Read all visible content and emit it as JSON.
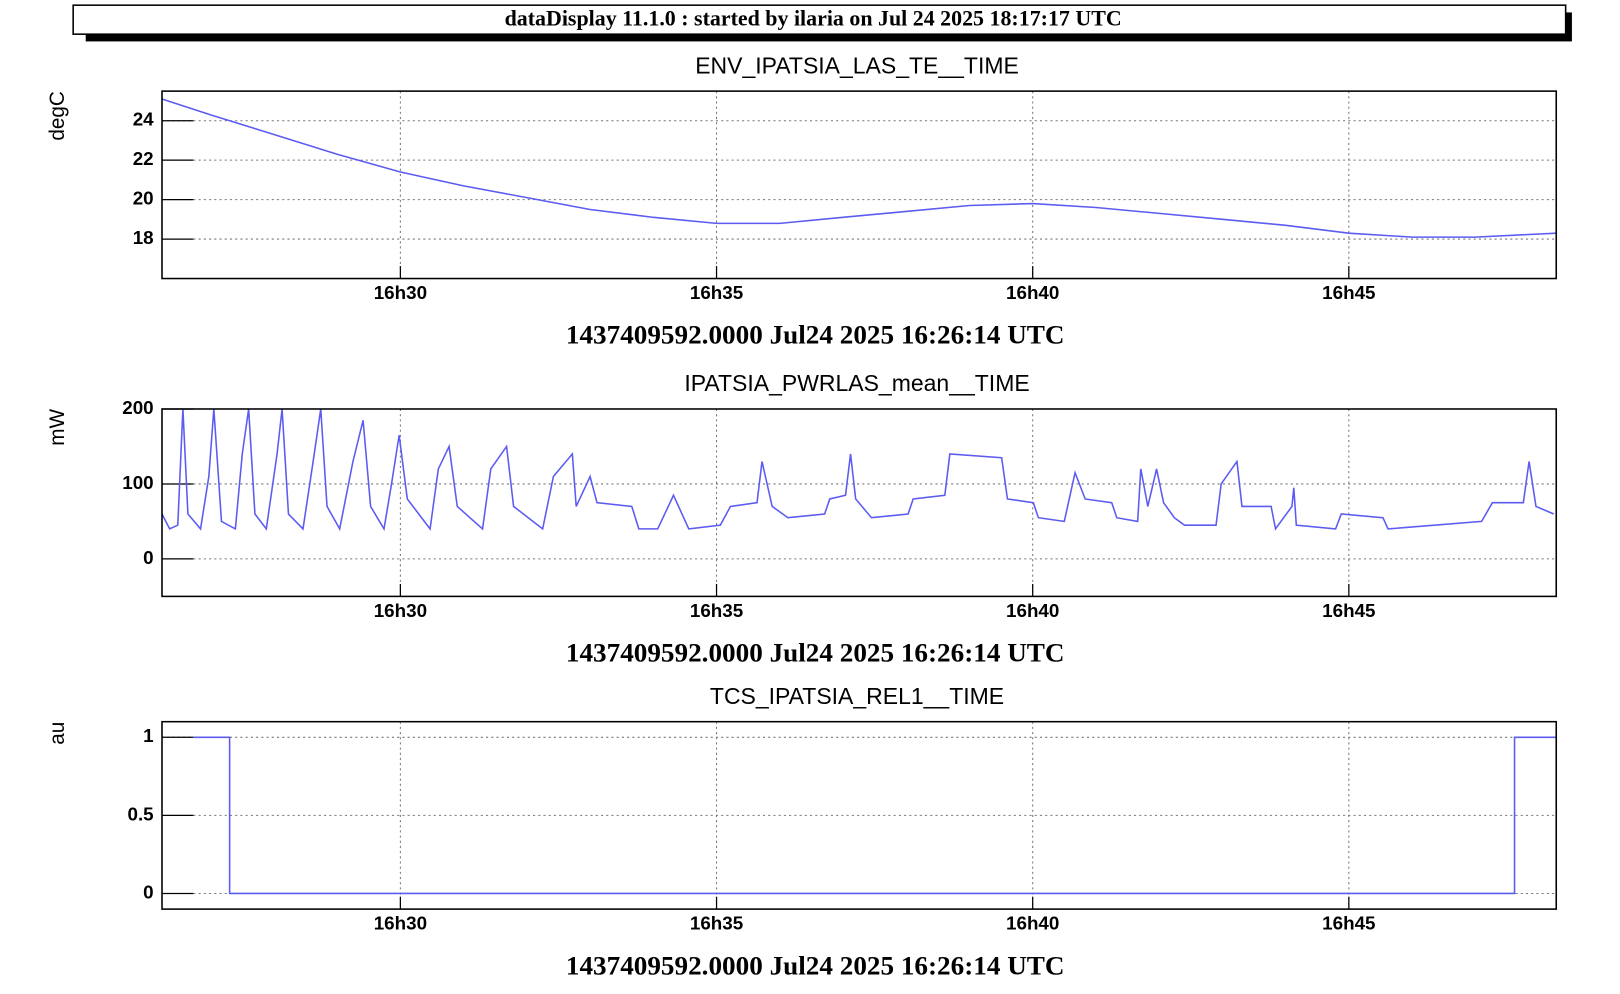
{
  "page_title": "dataDisplay 11.1.0 : started by ilaria on Jul 24 2025 18:17:17 UTC",
  "chart_data": [
    {
      "type": "line",
      "title": "ENV_IPATSIA_LAS_TE__TIME",
      "ylabel": "degC",
      "xlabel": "1437409592.0000 Jul24 2025 16:26:14 UTC",
      "color": "#5c5cf2",
      "grid": true,
      "x": [
        26.23,
        27,
        28,
        29,
        30,
        31,
        32,
        33,
        34,
        35,
        36,
        37,
        38,
        39,
        40,
        41,
        42,
        43,
        44,
        45,
        46,
        47,
        48.28
      ],
      "values": [
        25.1,
        24.3,
        23.3,
        22.3,
        21.4,
        20.7,
        20.1,
        19.5,
        19.1,
        18.8,
        18.8,
        19.1,
        19.4,
        19.7,
        19.8,
        19.6,
        19.3,
        19.0,
        18.7,
        18.3,
        18.1,
        18.1,
        18.3
      ],
      "xlim": [
        26.23,
        48.28
      ],
      "xticks": [
        {
          "value": 30,
          "label": "16h30"
        },
        {
          "value": 35,
          "label": "16h35"
        },
        {
          "value": 40,
          "label": "16h40"
        },
        {
          "value": 45,
          "label": "16h45"
        }
      ],
      "ylim": [
        16,
        25.5
      ],
      "yticks": [
        18,
        20,
        22,
        24
      ]
    },
    {
      "type": "line",
      "title": "IPATSIA_PWRLAS_mean__TIME",
      "ylabel": "mW",
      "xlabel": "1437409592.0000 Jul24 2025 16:26:14 UTC",
      "color": "#5c5cf2",
      "grid": true,
      "x": [
        26.23,
        26.35,
        26.48,
        26.56,
        26.64,
        26.84,
        26.97,
        27.05,
        27.17,
        27.39,
        27.5,
        27.6,
        27.7,
        27.88,
        28.05,
        28.13,
        28.23,
        28.46,
        28.62,
        28.74,
        28.84,
        29.04,
        29.25,
        29.41,
        29.53,
        29.74,
        29.86,
        29.98,
        30.11,
        30.47,
        30.6,
        30.77,
        30.9,
        31.3,
        31.43,
        31.68,
        31.79,
        32.25,
        32.42,
        32.72,
        32.78,
        33.0,
        33.11,
        33.66,
        33.77,
        34.07,
        34.32,
        34.56,
        35.06,
        35.22,
        35.64,
        35.72,
        35.88,
        36.13,
        36.71,
        36.79,
        37.04,
        37.12,
        37.2,
        37.45,
        38.03,
        38.11,
        38.61,
        38.69,
        39.51,
        39.6,
        40.01,
        40.09,
        40.5,
        40.67,
        40.83,
        41.25,
        41.33,
        41.66,
        41.71,
        41.82,
        41.96,
        42.07,
        42.24,
        42.4,
        42.9,
        42.98,
        43.23,
        43.31,
        43.77,
        43.84,
        44.1,
        44.13,
        44.17,
        44.79,
        44.88,
        45.54,
        45.62,
        47.1,
        47.27,
        47.76,
        47.85,
        47.96,
        48.24
      ],
      "values": [
        60,
        40,
        45,
        200,
        60,
        40,
        110,
        200,
        50,
        40,
        140,
        200,
        60,
        40,
        140,
        200,
        60,
        40,
        130,
        200,
        70,
        40,
        130,
        185,
        70,
        40,
        100,
        165,
        80,
        40,
        120,
        150,
        70,
        40,
        120,
        150,
        70,
        40,
        110,
        140,
        70,
        110,
        75,
        70,
        40,
        40,
        85,
        40,
        45,
        70,
        75,
        130,
        70,
        55,
        60,
        80,
        85,
        140,
        80,
        55,
        60,
        80,
        85,
        140,
        135,
        80,
        75,
        55,
        50,
        115,
        80,
        75,
        55,
        50,
        120,
        70,
        120,
        75,
        55,
        45,
        45,
        100,
        130,
        70,
        70,
        40,
        70,
        95,
        45,
        40,
        60,
        55,
        40,
        50,
        75,
        75,
        130,
        70,
        60
      ],
      "xlim": [
        26.23,
        48.28
      ],
      "xticks": [
        {
          "value": 30,
          "label": "16h30"
        },
        {
          "value": 35,
          "label": "16h35"
        },
        {
          "value": 40,
          "label": "16h40"
        },
        {
          "value": 45,
          "label": "16h45"
        }
      ],
      "ylim": [
        -50,
        200
      ],
      "yticks": [
        0,
        100,
        200
      ]
    },
    {
      "type": "line",
      "title": "TCS_IPATSIA_REL1__TIME",
      "ylabel": "au",
      "xlabel": "1437409592.0000 Jul24 2025 16:26:14 UTC",
      "color": "#5c5cf2",
      "grid": true,
      "x": [
        26.73,
        27.3,
        27.3,
        47.62,
        47.62,
        48.28
      ],
      "values": [
        1,
        1,
        0,
        0,
        1,
        1
      ],
      "xlim": [
        26.23,
        48.28
      ],
      "xticks": [
        {
          "value": 30,
          "label": "16h30"
        },
        {
          "value": 35,
          "label": "16h35"
        },
        {
          "value": 40,
          "label": "16h40"
        },
        {
          "value": 45,
          "label": "16h45"
        }
      ],
      "ylim": [
        -0.1,
        1.1
      ],
      "yticks": [
        0,
        0.5,
        1
      ]
    }
  ]
}
